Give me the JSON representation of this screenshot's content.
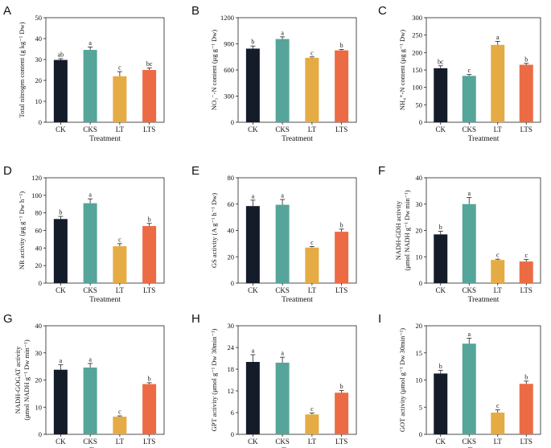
{
  "colors": {
    "CK": "#141c2a",
    "CKS": "#55a59a",
    "LT": "#e5ab44",
    "LTS": "#ec6b45"
  },
  "chart_data": [
    {
      "type": "bar",
      "panel": "A",
      "categories": [
        "CK",
        "CKS",
        "LT",
        "LTS"
      ],
      "values": [
        29.8,
        34.6,
        22.0,
        25.0
      ],
      "errors": [
        0.6,
        1.4,
        2.2,
        1.0
      ],
      "letters": [
        "ab",
        "a",
        "c",
        "bc"
      ],
      "ylabel": "Total nitrogen content (g kg⁻¹ Dw)",
      "xlabel": "Treatment",
      "ylim": [
        0,
        50
      ],
      "yticks": [
        0,
        10,
        20,
        30,
        40,
        50
      ]
    },
    {
      "type": "bar",
      "panel": "B",
      "categories": [
        "CK",
        "CKS",
        "LT",
        "LTS"
      ],
      "values": [
        845,
        955,
        740,
        825
      ],
      "errors": [
        30,
        25,
        10,
        10
      ],
      "letters": [
        "b",
        "a",
        "c",
        "b"
      ],
      "ylabel": "NO₃⁻-N content (μg g⁻¹ Dw)",
      "xlabel": "Treatment",
      "ylim": [
        0,
        1200
      ],
      "yticks": [
        0,
        300,
        600,
        900,
        1200
      ]
    },
    {
      "type": "bar",
      "panel": "C",
      "categories": [
        "CK",
        "CKS",
        "LT",
        "LTS"
      ],
      "values": [
        155,
        133,
        222,
        165
      ],
      "errors": [
        7,
        4,
        10,
        4
      ],
      "letters": [
        "bc",
        "c",
        "a",
        "b"
      ],
      "ylabel": "NH₄⁺-N content (μg g⁻¹ Dw)",
      "xlabel": "Treatment",
      "ylim": [
        0,
        300
      ],
      "yticks": [
        0,
        50,
        100,
        150,
        200,
        250,
        300
      ]
    },
    {
      "type": "bar",
      "panel": "D",
      "categories": [
        "CK",
        "CKS",
        "LT",
        "LTS"
      ],
      "values": [
        73,
        91,
        42,
        65
      ],
      "errors": [
        3,
        5,
        3,
        3
      ],
      "letters": [
        "b",
        "a",
        "c",
        "b"
      ],
      "ylabel": "NR activity (μg g⁻¹ Dw h⁻¹)",
      "xlabel": "Treatment",
      "ylim": [
        0,
        120
      ],
      "yticks": [
        0,
        20,
        40,
        60,
        80,
        100,
        120
      ]
    },
    {
      "type": "bar",
      "panel": "E",
      "categories": [
        "CK",
        "CKS",
        "LT",
        "LTS"
      ],
      "values": [
        58.5,
        59.5,
        27.0,
        39.0
      ],
      "errors": [
        4.5,
        4.0,
        0.8,
        2.0
      ],
      "letters": [
        "a",
        "a",
        "c",
        "b"
      ],
      "ylabel": "GS activity (A g⁻¹ h⁻¹ Dw)",
      "xlabel": "Treatment",
      "ylim": [
        0,
        80
      ],
      "yticks": [
        0,
        20,
        40,
        60,
        80
      ]
    },
    {
      "type": "bar",
      "panel": "F",
      "categories": [
        "CK",
        "CKS",
        "LT",
        "LTS"
      ],
      "values": [
        18.5,
        30.0,
        8.8,
        8.2
      ],
      "errors": [
        1.2,
        2.5,
        0.3,
        0.8
      ],
      "letters": [
        "b",
        "a",
        "c",
        "c"
      ],
      "ylabel": "NADH-GDH activity",
      "ylabel2": "(μmol NADH g⁻¹ Dw min⁻¹)",
      "xlabel": "Treatment",
      "ylim": [
        0,
        40
      ],
      "yticks": [
        0,
        10,
        20,
        30,
        40
      ]
    },
    {
      "type": "bar",
      "panel": "G",
      "categories": [
        "CK",
        "CKS",
        "LT",
        "LTS"
      ],
      "values": [
        23.8,
        24.6,
        6.5,
        18.5
      ],
      "errors": [
        1.8,
        1.5,
        0.3,
        0.5
      ],
      "letters": [
        "a",
        "a",
        "c",
        "b"
      ],
      "ylabel": "NADH-GOGAT activity",
      "ylabel2": "(μmol NADH g⁻¹ Dw min⁻¹)",
      "xlabel": "Treatment",
      "ylim": [
        0,
        40
      ],
      "yticks": [
        0,
        10,
        20,
        30,
        40
      ]
    },
    {
      "type": "bar",
      "panel": "H",
      "categories": [
        "CK",
        "CKS",
        "LT",
        "LTS"
      ],
      "values": [
        20.0,
        19.8,
        5.5,
        11.5
      ],
      "errors": [
        2.0,
        1.5,
        0.4,
        0.6
      ],
      "letters": [
        "a",
        "a",
        "c",
        "b"
      ],
      "ylabel": "GPT activity (μmol g⁻¹ Dw 30min⁻¹)",
      "xlabel": "Treatment",
      "ylim": [
        0,
        30
      ],
      "yticks": [
        0,
        6,
        12,
        18,
        24,
        30
      ]
    },
    {
      "type": "bar",
      "panel": "I",
      "categories": [
        "CK",
        "CKS",
        "LT",
        "LTS"
      ],
      "values": [
        11.2,
        16.7,
        4.0,
        9.3
      ],
      "errors": [
        0.6,
        1.0,
        0.5,
        0.5
      ],
      "letters": [
        "b",
        "a",
        "c",
        "b"
      ],
      "ylabel": "GOT activity (μmol g⁻¹ Dw 30min⁻¹)",
      "xlabel": "Treatment",
      "ylim": [
        0,
        20
      ],
      "yticks": [
        0,
        5,
        10,
        15,
        20
      ]
    }
  ]
}
